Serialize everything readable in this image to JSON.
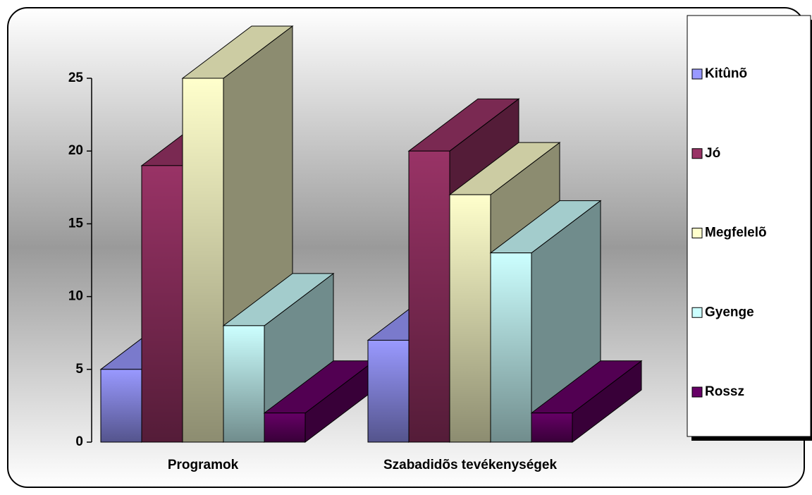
{
  "chart_data": {
    "type": "bar3d",
    "categories": [
      "Programok",
      "Szabadidõs tevékenységek"
    ],
    "series": [
      {
        "name": "Kitûnõ",
        "color": "#9999ff",
        "values": [
          5,
          7
        ]
      },
      {
        "name": "Jó",
        "color": "#993366",
        "values": [
          19,
          20
        ]
      },
      {
        "name": "Megfelelõ",
        "color": "#ffffcc",
        "values": [
          25,
          17
        ]
      },
      {
        "name": "Gyenge",
        "color": "#ccffff",
        "values": [
          8,
          13
        ]
      },
      {
        "name": "Rossz",
        "color": "#660066",
        "values": [
          2,
          2
        ]
      }
    ],
    "ylim": [
      0,
      25
    ],
    "yticks": [
      0,
      5,
      10,
      15,
      20,
      25
    ],
    "legend": "right"
  }
}
